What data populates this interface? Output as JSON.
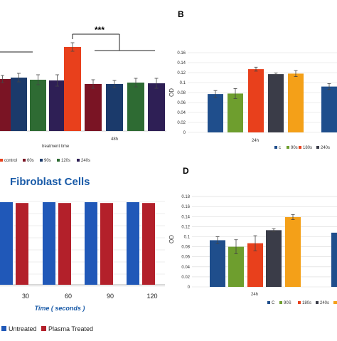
{
  "colors": {
    "dark_blue": "#1f4e8c",
    "red": "#e8401c",
    "maroon": "#7a1424",
    "navy": "#1b3a6b",
    "green": "#2e6b33",
    "purple": "#2e1f55",
    "olive": "#6e9e2e",
    "orange": "#f4a018",
    "slate": "#3a3c48",
    "bright_blue": "#2058b8",
    "crimson": "#b3202a",
    "grid": "#d9d9d9"
  },
  "chart_data": [
    {
      "panel": "A",
      "type": "bar",
      "label": "",
      "categories": [
        "",
        "48h"
      ],
      "series": [
        {
          "name": "control",
          "values": [
            null,
            0.118
          ]
        },
        {
          "name": "60s",
          "values": [
            0.073,
            0.066
          ]
        },
        {
          "name": "90s",
          "values": [
            0.075,
            0.066
          ]
        },
        {
          "name": "120s",
          "values": [
            0.072,
            0.068
          ]
        },
        {
          "name": "240s",
          "values": [
            0.071,
            0.067
          ]
        }
      ],
      "errors": [
        [
          null,
          0.006
        ],
        [
          0.005,
          0.006
        ],
        [
          0.006,
          0.005
        ],
        [
          0.007,
          0.006
        ],
        [
          0.008,
          0.007
        ]
      ],
      "xlabel": "treatment time",
      "annotation": "***",
      "ylim": [
        0,
        0.14
      ]
    },
    {
      "panel": "B",
      "type": "bar",
      "label": "B",
      "categories": [
        "24h",
        ""
      ],
      "series": [
        {
          "name": "c",
          "values": [
            0.077,
            0.092
          ]
        },
        {
          "name": "90s",
          "values": [
            0.078,
            null
          ]
        },
        {
          "name": "180s",
          "values": [
            0.127,
            null
          ]
        },
        {
          "name": "240s",
          "values": [
            0.117,
            null
          ]
        },
        {
          "name": "",
          "values": [
            0.118,
            null
          ]
        }
      ],
      "errors": [
        [
          0.007,
          0.006
        ],
        [
          0.01,
          null
        ],
        [
          0.004,
          null
        ],
        [
          0.002,
          null
        ],
        [
          0.006,
          null
        ]
      ],
      "ylabel": "OD",
      "yticks": [
        "0",
        "0.02",
        "0.04",
        "0.06",
        "0.08",
        "0.1",
        "0.12",
        "0.14",
        "0.16"
      ],
      "ylim": [
        0,
        0.16
      ],
      "legend_labels": [
        "c",
        "90s",
        "180s",
        "240s"
      ]
    },
    {
      "panel": "C",
      "type": "bar",
      "title": "Fibroblast Cells",
      "categories": [
        "30",
        "60",
        "90",
        "120"
      ],
      "series": [
        {
          "name": "Untreated",
          "values": [
            100,
            100,
            100,
            100
          ]
        },
        {
          "name": "Plasma Treated",
          "values": [
            99,
            99,
            99,
            99
          ]
        }
      ],
      "xlabel": "Time ( seconds )",
      "ylim": [
        0,
        100
      ]
    },
    {
      "panel": "D",
      "type": "bar",
      "label": "D",
      "categories": [
        "24h",
        ""
      ],
      "series": [
        {
          "name": "C",
          "values": [
            0.093,
            0.108
          ]
        },
        {
          "name": "90S",
          "values": [
            0.08,
            null
          ]
        },
        {
          "name": "180s",
          "values": [
            0.087,
            null
          ]
        },
        {
          "name": "240s",
          "values": [
            0.113,
            null
          ]
        },
        {
          "name": "",
          "values": [
            0.139,
            null
          ]
        }
      ],
      "errors": [
        [
          0.007,
          null
        ],
        [
          0.014,
          null
        ],
        [
          0.015,
          null
        ],
        [
          0.003,
          null
        ],
        [
          0.005,
          null
        ]
      ],
      "ylabel": "OD",
      "yticks": [
        "0",
        "0.02",
        "0.04",
        "0.06",
        "0.08",
        "0.1",
        "0.12",
        "0.14",
        "0.16",
        "0.18"
      ],
      "ylim": [
        0,
        0.18
      ],
      "legend_labels": [
        "C",
        "90S",
        "180s",
        "240s"
      ]
    }
  ]
}
